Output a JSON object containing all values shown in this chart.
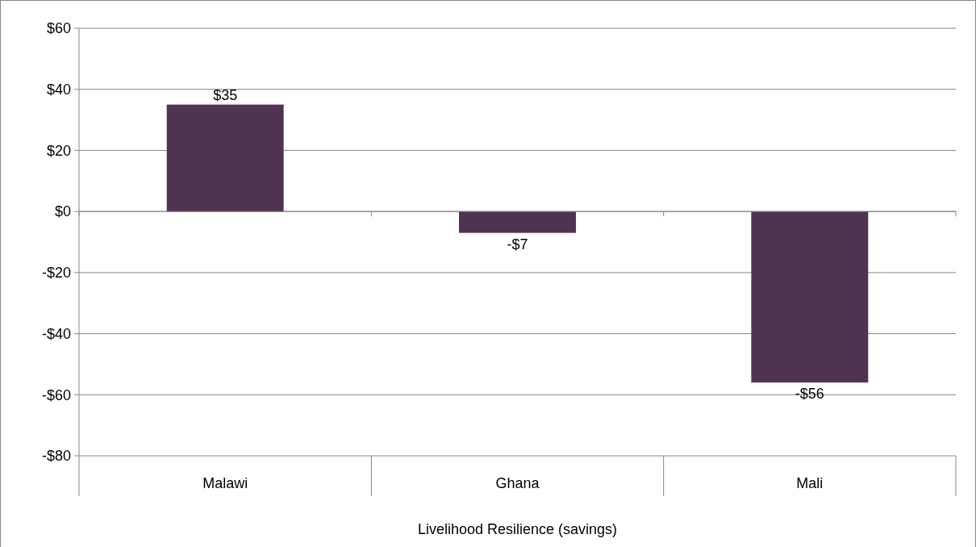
{
  "chart_data": {
    "type": "bar",
    "categories": [
      "Malawi",
      "Ghana",
      "Mali"
    ],
    "xlabel": "Livelihood Resilience (savings)",
    "values": [
      35,
      -7,
      -56
    ],
    "color": "#4f3350",
    "value_labels": [
      "$35",
      "-$7",
      "-$56"
    ],
    "ylim": [
      -80,
      60
    ],
    "yticks": [
      {
        "value": -80,
        "label": "-$80"
      },
      {
        "value": -60,
        "label": "-$60"
      },
      {
        "value": -40,
        "label": "-$40"
      },
      {
        "value": -20,
        "label": "-$20"
      },
      {
        "value": 0,
        "label": "$0"
      },
      {
        "value": 20,
        "label": "$20"
      },
      {
        "value": 40,
        "label": "$40"
      },
      {
        "value": 60,
        "label": "$60"
      }
    ],
    "grid": "y"
  }
}
